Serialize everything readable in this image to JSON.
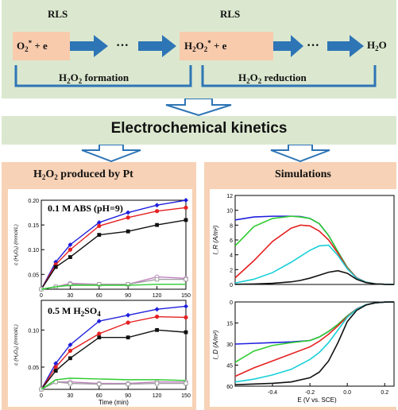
{
  "mechanism": {
    "rls_left": "RLS",
    "rls_right": "RLS",
    "o2_species": "O",
    "o2_sub": "2",
    "o2_sup": "*",
    "plus_e": " + e",
    "ellipsis": "···",
    "h2o2": "H",
    "h2o2_sub1": "2",
    "h2o2_mid": "O",
    "h2o2_sub2": "2",
    "h2o2_sup": "*",
    "h2o_end": "H",
    "h2o_sub": "2",
    "h2o_O": "O",
    "formation_label_pre": "H",
    "formation_sub1": "2",
    "formation_mid": "O",
    "formation_sub2": "2",
    "formation_post": " formation",
    "reduction_post": " reduction"
  },
  "kinetics_title": "Electrochemical kinetics",
  "left_panel": {
    "title_pre": "H",
    "title_sub1": "2",
    "title_mid": "O",
    "title_sub2": "2",
    "title_post": " produced by Pt",
    "top_label": "0.1 M ABS (pH=9)",
    "bottom_label_pre": "0.5 M H",
    "bottom_label_sub1": "2",
    "bottom_label_post": "SO",
    "bottom_label_sub2": "4",
    "ylabel": "c (H₂O₂) (mmol/L)",
    "xlabel": "Time (min)"
  },
  "right_panel": {
    "title": "Simulations",
    "top_ylabel": "I_R (A/m²)",
    "bottom_ylabel": "I_D (A/m²)",
    "xlabel": "E (V vs. SCE)"
  },
  "colors": {
    "panel_green": "#dbe8cf",
    "panel_orange": "#f7d2b6",
    "pink_box": "#f8cbad",
    "arrow_blue": "#2e75b6",
    "blue_series": "#1f1fdd",
    "red_series": "#e62020",
    "black_series": "#111111",
    "green_series": "#2ecc2e",
    "cyan_series": "#19d0d8",
    "purple_series": "#c080c0",
    "grey_series": "#a0a0a0"
  },
  "chart_data": [
    {
      "type": "line",
      "title": "0.1 M ABS (pH=9)",
      "xlabel": "",
      "ylabel": "c (H₂O₂) (mmol/L)",
      "x": [
        0,
        15,
        30,
        60,
        90,
        120,
        150
      ],
      "xlim": [
        0,
        150
      ],
      "ylim": [
        0.02,
        0.2
      ],
      "yticks": [
        0.05,
        0.1,
        0.15,
        0.2
      ],
      "xticks": [
        0,
        30,
        60,
        90,
        120,
        150
      ],
      "series": [
        {
          "color": "#1f1fdd",
          "marker": "diamond",
          "values": [
            0.02,
            0.075,
            0.11,
            0.155,
            0.175,
            0.19,
            0.2
          ]
        },
        {
          "color": "#e62020",
          "marker": "circle",
          "values": [
            0.02,
            0.07,
            0.1,
            0.148,
            0.165,
            0.178,
            0.185
          ]
        },
        {
          "color": "#111111",
          "marker": "square",
          "values": [
            0.02,
            0.065,
            0.085,
            0.13,
            0.137,
            0.15,
            0.16
          ]
        },
        {
          "color": "#c080c0",
          "marker": "circle-open",
          "values": [
            0.02,
            0.025,
            0.032,
            0.03,
            0.03,
            0.045,
            0.042
          ]
        },
        {
          "color": "#a0a0a0",
          "marker": "square-open",
          "values": [
            0.02,
            0.025,
            0.03,
            0.03,
            0.03,
            0.04,
            0.04
          ]
        },
        {
          "color": "#2ecc2e",
          "marker": "none",
          "values": [
            0.02,
            0.025,
            0.028,
            0.028,
            0.028,
            0.03,
            0.03
          ]
        }
      ]
    },
    {
      "type": "line",
      "title": "0.5 M H2SO4",
      "xlabel": "Time (min)",
      "ylabel": "c (H₂O₂) (mmol/L)",
      "x": [
        0,
        15,
        30,
        60,
        90,
        120,
        150
      ],
      "xlim": [
        0,
        150
      ],
      "ylim": [
        0.02,
        0.14
      ],
      "yticks": [
        0.05,
        0.1
      ],
      "xticks": [
        0,
        30,
        60,
        90,
        120,
        150
      ],
      "series": [
        {
          "color": "#1f1fdd",
          "marker": "diamond",
          "values": [
            0.02,
            0.055,
            0.08,
            0.112,
            0.12,
            0.128,
            0.132
          ]
        },
        {
          "color": "#e62020",
          "marker": "circle",
          "values": [
            0.02,
            0.05,
            0.072,
            0.095,
            0.11,
            0.118,
            0.117
          ]
        },
        {
          "color": "#111111",
          "marker": "square",
          "values": [
            0.02,
            0.045,
            0.062,
            0.09,
            0.09,
            0.1,
            0.097
          ]
        },
        {
          "color": "#c080c0",
          "marker": "circle-open",
          "values": [
            0.02,
            0.03,
            0.03,
            0.028,
            0.028,
            0.03,
            0.03
          ]
        },
        {
          "color": "#a0a0a0",
          "marker": "square-open",
          "values": [
            0.02,
            0.03,
            0.028,
            0.027,
            0.027,
            0.028,
            0.028
          ]
        },
        {
          "color": "#2ecc2e",
          "marker": "none",
          "values": [
            0.02,
            0.033,
            0.035,
            0.034,
            0.033,
            0.033,
            0.032
          ]
        }
      ]
    },
    {
      "type": "line",
      "title": "",
      "ylabel": "I_R (A/m²)",
      "xlabel": "",
      "xlim": [
        -0.6,
        0.25
      ],
      "ylim": [
        0,
        12
      ],
      "yticks": [
        0,
        2,
        4,
        6,
        8,
        10,
        12
      ],
      "x": [
        -0.6,
        -0.5,
        -0.4,
        -0.3,
        -0.25,
        -0.2,
        -0.15,
        -0.1,
        -0.05,
        0.0,
        0.05,
        0.1,
        0.15,
        0.2,
        0.25
      ],
      "series": [
        {
          "color": "#1f1fdd",
          "values": [
            8.7,
            9.1,
            9.2,
            9.2,
            9.15,
            8.9,
            8.2,
            6.6,
            4.4,
            2.3,
            0.9,
            0.3,
            0.08,
            0.02,
            0.0
          ]
        },
        {
          "color": "#2ecc2e",
          "values": [
            5.2,
            7.8,
            8.9,
            9.2,
            9.1,
            8.9,
            8.2,
            6.6,
            4.4,
            2.3,
            0.9,
            0.3,
            0.08,
            0.02,
            0.0
          ]
        },
        {
          "color": "#e62020",
          "values": [
            0.9,
            3.2,
            5.8,
            7.6,
            8.0,
            7.9,
            7.2,
            6.0,
            4.2,
            2.2,
            0.9,
            0.3,
            0.08,
            0.02,
            0.0
          ]
        },
        {
          "color": "#19d0d8",
          "values": [
            0.2,
            0.7,
            1.6,
            3.0,
            3.8,
            4.6,
            5.2,
            5.3,
            3.9,
            2.1,
            0.85,
            0.3,
            0.08,
            0.02,
            0.0
          ]
        },
        {
          "color": "#111111",
          "values": [
            0.02,
            0.06,
            0.15,
            0.35,
            0.55,
            0.85,
            1.25,
            1.65,
            1.85,
            1.5,
            0.7,
            0.25,
            0.07,
            0.02,
            0.0
          ]
        }
      ]
    },
    {
      "type": "line",
      "title": "",
      "ylabel": "I_D (A/m²)",
      "xlabel": "E (V vs. SCE)",
      "xlim": [
        -0.6,
        0.25
      ],
      "ylim": [
        60,
        0
      ],
      "yticks": [
        0,
        15,
        30,
        45,
        60
      ],
      "xticks": [
        -0.4,
        -0.2,
        0.0,
        0.2
      ],
      "x": [
        -0.6,
        -0.5,
        -0.4,
        -0.3,
        -0.2,
        -0.15,
        -0.1,
        -0.05,
        0.0,
        0.05,
        0.1,
        0.15,
        0.2,
        0.25
      ],
      "series": [
        {
          "color": "#1f1fdd",
          "values": [
            30,
            29.5,
            29,
            28.5,
            27.5,
            25,
            21,
            16,
            10,
            5,
            2,
            0.6,
            0.1,
            0.0
          ]
        },
        {
          "color": "#2ecc2e",
          "values": [
            43,
            35,
            31,
            29,
            27.5,
            25,
            21,
            16,
            10,
            5,
            2,
            0.6,
            0.1,
            0.0
          ]
        },
        {
          "color": "#e62020",
          "values": [
            53,
            47,
            42,
            37,
            32,
            28,
            23,
            17,
            10.5,
            5,
            2,
            0.6,
            0.1,
            0.0
          ]
        },
        {
          "color": "#19d0d8",
          "values": [
            57,
            55,
            52,
            48,
            41,
            36,
            29,
            20,
            11,
            5.2,
            2,
            0.6,
            0.1,
            0.0
          ]
        },
        {
          "color": "#111111",
          "values": [
            59,
            58.5,
            58,
            57,
            54,
            50,
            42,
            29,
            14,
            6,
            2.2,
            0.6,
            0.1,
            0.0
          ]
        }
      ]
    }
  ]
}
